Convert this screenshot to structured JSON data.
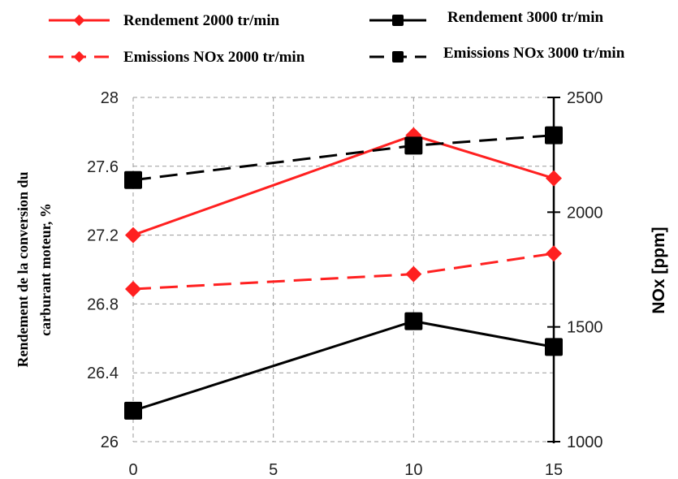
{
  "chart_data": {
    "type": "line",
    "x": [
      0,
      10,
      15
    ],
    "xticks": [
      "0",
      "5",
      "10",
      "15"
    ],
    "xlim": [
      0,
      15
    ],
    "y_left": {
      "label_line1": "Rendement de la conversion du",
      "label_line2": "carburant moteur, %",
      "ylim": [
        26,
        28
      ],
      "ticks": [
        "26",
        "26.4",
        "26.8",
        "27.2",
        "27.6",
        "28"
      ]
    },
    "y_right": {
      "label": "NOx [ppm]",
      "ylim": [
        1000,
        2500
      ],
      "ticks": [
        "1000",
        "1500",
        "2000",
        "2500"
      ]
    },
    "grid": true,
    "legend_position": "top",
    "series": [
      {
        "name": "Rendement 2000 tr/min",
        "axis": "left",
        "color": "#ff2020",
        "dash": "solid",
        "marker": "diamond",
        "values": [
          27.2,
          27.78,
          27.53
        ]
      },
      {
        "name": "Rendement 3000 tr/min",
        "axis": "left",
        "color": "#000000",
        "dash": "solid",
        "marker": "square",
        "values": [
          26.18,
          26.7,
          26.55
        ]
      },
      {
        "name": "Emissions NOx 2000 tr/min",
        "axis": "right",
        "color": "#ff2020",
        "dash": "dashed",
        "marker": "diamond",
        "values": [
          1665,
          1730,
          1820
        ]
      },
      {
        "name": "Emissions NOx 3000 tr/min",
        "axis": "right",
        "color": "#000000",
        "dash": "dashed",
        "marker": "square",
        "values": [
          2140,
          2290,
          2335
        ]
      }
    ]
  }
}
